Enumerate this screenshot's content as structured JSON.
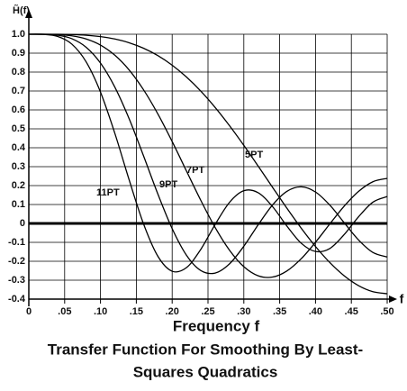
{
  "chart_data": {
    "type": "line",
    "title": [
      "Transfer Function For Smoothing By Least-",
      "Squares Quadratics"
    ],
    "x_label": "Frequency f",
    "x_axis_end_label": "f",
    "y_label": "H̃(f)",
    "xlim": [
      0,
      0.5
    ],
    "ylim": [
      -0.4,
      1.0
    ],
    "xticks": [
      {
        "value": 0,
        "label": "0"
      },
      {
        "value": 0.05,
        "label": ".05"
      },
      {
        "value": 0.1,
        "label": ".10"
      },
      {
        "value": 0.15,
        "label": ".15"
      },
      {
        "value": 0.2,
        "label": ".20"
      },
      {
        "value": 0.25,
        "label": ".25"
      },
      {
        "value": 0.3,
        "label": ".30"
      },
      {
        "value": 0.35,
        "label": ".35"
      },
      {
        "value": 0.4,
        "label": ".40"
      },
      {
        "value": 0.45,
        "label": ".45"
      },
      {
        "value": 0.5,
        "label": ".50"
      }
    ],
    "yticks": [
      {
        "value": 1,
        "label": "1.0"
      },
      0.9,
      0.8,
      0.7,
      0.6,
      0.5,
      0.4,
      0.3,
      0.2,
      0.1,
      0,
      -0.1,
      -0.2,
      -0.3,
      -0.4
    ],
    "grid": true,
    "x": [
      0,
      0.02,
      0.04,
      0.06,
      0.08,
      0.1,
      0.12,
      0.14,
      0.16,
      0.18,
      0.2,
      0.22,
      0.24,
      0.26,
      0.28,
      0.3,
      0.32,
      0.34,
      0.36,
      0.38,
      0.4,
      0.42,
      0.44,
      0.46,
      0.48,
      0.5
    ],
    "series": [
      {
        "name": "5PT",
        "color": "#000000",
        "values": [
          1,
          1.0,
          0.9997,
          0.9983,
          0.9948,
          0.9875,
          0.9748,
          0.9549,
          0.9261,
          0.887,
          0.8363,
          0.7736,
          0.6989,
          0.6127,
          0.5166,
          0.4125,
          0.303,
          0.1913,
          0.0808,
          -0.0249,
          -0.122,
          -0.207,
          -0.2768,
          -0.3287,
          -0.3606,
          -0.3714
        ]
      },
      {
        "name": "7PT",
        "color": "#000000",
        "values": [
          1,
          0.9999,
          0.9983,
          0.9918,
          0.9752,
          0.9428,
          0.8892,
          0.811,
          0.7068,
          0.579,
          0.4329,
          0.2768,
          0.1214,
          -0.0217,
          -0.1415,
          -0.2285,
          -0.2766,
          -0.2835,
          -0.2514,
          -0.1867,
          -0.0995,
          -0.0024,
          0.0914,
          0.1691,
          0.2203,
          0.2381
        ]
      },
      {
        "name": "9PT",
        "color": "#000000",
        "values": [
          1,
          0.9997,
          0.9951,
          0.9765,
          0.9311,
          0.8476,
          0.7206,
          0.553,
          0.3578,
          0.1559,
          -0.0275,
          -0.1684,
          -0.2491,
          -0.2623,
          -0.2137,
          -0.1204,
          -0.0074,
          0.0973,
          0.1694,
          0.1935,
          0.1661,
          0.0965,
          0.0038,
          -0.0873,
          -0.1534,
          -0.1775
        ]
      },
      {
        "name": "11PT",
        "color": "#000000",
        "values": [
          1,
          0.9993,
          0.9888,
          0.9479,
          0.8538,
          0.6942,
          0.4765,
          0.2299,
          -0.0018,
          -0.1732,
          -0.2526,
          -0.2334,
          -0.1368,
          -0.0053,
          0.1113,
          0.173,
          0.1623,
          0.0893,
          -0.0136,
          -0.1045,
          -0.1483,
          -0.1322,
          -0.0587,
          0.0349,
          0.1123,
          0.1422
        ]
      }
    ]
  }
}
